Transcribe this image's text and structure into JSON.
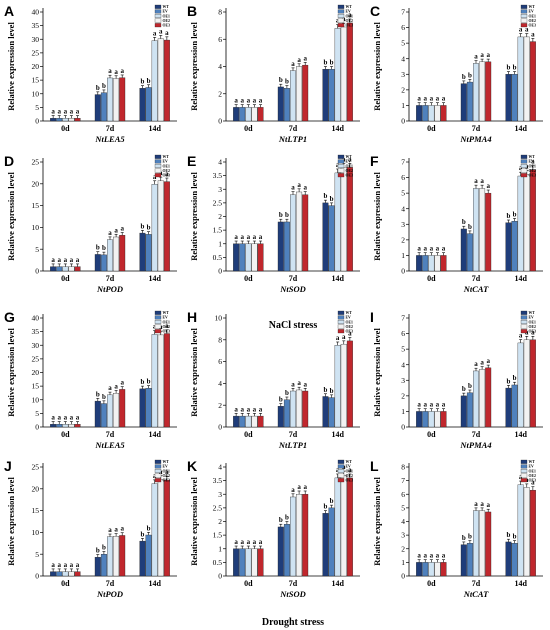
{
  "colors": {
    "WT": "#1f3d7a",
    "EV": "#4f81bd",
    "OE1": "#cfe3f2",
    "OE2": "#f2f2f2",
    "OE3": "#c0272d"
  },
  "stress_labels": [
    "NaCl stress",
    "Drought stress"
  ],
  "chart_data": [
    {
      "panel": "A",
      "type": "bar",
      "ylabel": "Relative expression level",
      "xlabel": "NtLEA5",
      "categories": [
        "0d",
        "7d",
        "14d"
      ],
      "ylim": [
        0,
        40
      ],
      "yticks": [
        0,
        5,
        10,
        15,
        20,
        25,
        30,
        35,
        40
      ],
      "series": [
        {
          "name": "WT",
          "values": [
            1,
            9.7,
            12
          ]
        },
        {
          "name": "EV",
          "values": [
            1,
            10.4,
            12.3
          ]
        },
        {
          "name": "OE1",
          "values": [
            1,
            15.8,
            29.5
          ]
        },
        {
          "name": "OE2",
          "values": [
            1,
            15.6,
            30.2
          ]
        },
        {
          "name": "OE3",
          "values": [
            1,
            15.9,
            29.7
          ]
        }
      ],
      "letters": [
        [
          "a",
          "a",
          "a",
          "a",
          "a"
        ],
        [
          "b",
          "b",
          "a",
          "a",
          "a"
        ],
        [
          "b",
          "b",
          "a",
          "a",
          "a"
        ]
      ]
    },
    {
      "panel": "B",
      "type": "bar",
      "ylabel": "Relative expression level",
      "xlabel": "NtLTP1",
      "categories": [
        "0d",
        "7d",
        "14d"
      ],
      "ylim": [
        0,
        8
      ],
      "yticks": [
        0,
        2,
        4,
        6,
        8
      ],
      "series": [
        {
          "name": "WT",
          "values": [
            1,
            2.5,
            3.8
          ]
        },
        {
          "name": "EV",
          "values": [
            1,
            2.4,
            3.8
          ]
        },
        {
          "name": "OE1",
          "values": [
            1,
            3.7,
            6.8
          ]
        },
        {
          "name": "OE2",
          "values": [
            1,
            4.0,
            6.9
          ]
        },
        {
          "name": "OE3",
          "values": [
            1,
            4.1,
            7.2
          ]
        }
      ],
      "letters": [
        [
          "a",
          "a",
          "a",
          "a",
          "a"
        ],
        [
          "b",
          "b",
          "a",
          "a",
          "a"
        ],
        [
          "b",
          "b",
          "a",
          "a",
          "a"
        ]
      ]
    },
    {
      "panel": "C",
      "type": "bar",
      "ylabel": "Relative expression level",
      "xlabel": "NtPMA4",
      "categories": [
        "0d",
        "7d",
        "14d"
      ],
      "ylim": [
        0,
        7
      ],
      "yticks": [
        0,
        1,
        2,
        3,
        4,
        5,
        6,
        7
      ],
      "series": [
        {
          "name": "WT",
          "values": [
            1,
            2.4,
            3.0
          ]
        },
        {
          "name": "EV",
          "values": [
            1,
            2.5,
            3.0
          ]
        },
        {
          "name": "OE1",
          "values": [
            1,
            3.7,
            5.4
          ]
        },
        {
          "name": "OE2",
          "values": [
            1,
            3.8,
            5.4
          ]
        },
        {
          "name": "OE3",
          "values": [
            1,
            3.8,
            5.1
          ]
        }
      ],
      "letters": [
        [
          "a",
          "a",
          "a",
          "a",
          "a"
        ],
        [
          "b",
          "b",
          "a",
          "a",
          "a"
        ],
        [
          "b",
          "b",
          "a",
          "a",
          "a"
        ]
      ]
    },
    {
      "panel": "D",
      "type": "bar",
      "ylabel": "Relative expression level",
      "xlabel": "NtPOD",
      "categories": [
        "0d",
        "7d",
        "14d"
      ],
      "ylim": [
        0,
        25
      ],
      "yticks": [
        0,
        5,
        10,
        15,
        20,
        25
      ],
      "series": [
        {
          "name": "WT",
          "values": [
            1,
            3.8,
            8.7
          ]
        },
        {
          "name": "EV",
          "values": [
            1,
            3.7,
            8.4
          ]
        },
        {
          "name": "OE1",
          "values": [
            1,
            7.2,
            19.9
          ]
        },
        {
          "name": "OE2",
          "values": [
            1,
            7.8,
            20.7
          ]
        },
        {
          "name": "OE3",
          "values": [
            1,
            8.2,
            20.5
          ]
        }
      ],
      "letters": [
        [
          "a",
          "a",
          "a",
          "a",
          "a"
        ],
        [
          "b",
          "b",
          "a",
          "a",
          "a"
        ],
        [
          "b",
          "b",
          "a",
          "a",
          "a"
        ]
      ]
    },
    {
      "panel": "E",
      "type": "bar",
      "ylabel": "Relative expression level",
      "xlabel": "NtSOD",
      "categories": [
        "0d",
        "7d",
        "14d"
      ],
      "ylim": [
        0,
        4.0
      ],
      "yticks": [
        0,
        0.5,
        1.0,
        1.5,
        2.0,
        2.5,
        3.0,
        3.5,
        4.0
      ],
      "series": [
        {
          "name": "WT",
          "values": [
            1.0,
            1.8,
            2.5
          ]
        },
        {
          "name": "EV",
          "values": [
            1.0,
            1.8,
            2.4
          ]
        },
        {
          "name": "OE1",
          "values": [
            1.0,
            2.8,
            3.6
          ]
        },
        {
          "name": "OE2",
          "values": [
            1.0,
            2.9,
            3.8
          ]
        },
        {
          "name": "OE3",
          "values": [
            1.0,
            2.8,
            3.8
          ]
        }
      ],
      "letters": [
        [
          "a",
          "a",
          "a",
          "a",
          "a"
        ],
        [
          "b",
          "b",
          "a",
          "a",
          "a"
        ],
        [
          "b",
          "b",
          "a",
          "a",
          "a"
        ]
      ]
    },
    {
      "panel": "F",
      "type": "bar",
      "ylabel": "Relative expression level",
      "xlabel": "NtCAT",
      "categories": [
        "0d",
        "7d",
        "14d"
      ],
      "ylim": [
        0,
        7
      ],
      "yticks": [
        0,
        1,
        2,
        3,
        4,
        5,
        6,
        7
      ],
      "series": [
        {
          "name": "WT",
          "values": [
            1,
            2.7,
            3.1
          ]
        },
        {
          "name": "EV",
          "values": [
            1,
            2.4,
            3.2
          ]
        },
        {
          "name": "OE1",
          "values": [
            1,
            5.3,
            6.1
          ]
        },
        {
          "name": "OE2",
          "values": [
            1,
            5.3,
            6.2
          ]
        },
        {
          "name": "OE3",
          "values": [
            1,
            5.0,
            6.5
          ]
        }
      ],
      "letters": [
        [
          "a",
          "a",
          "a",
          "a",
          "a"
        ],
        [
          "b",
          "b",
          "a",
          "a",
          "a"
        ],
        [
          "b",
          "b",
          "a",
          "a",
          "a"
        ]
      ]
    },
    {
      "panel": "G",
      "type": "bar",
      "ylabel": "Relative expression level",
      "xlabel": "NtLEA5",
      "categories": [
        "0d",
        "7d",
        "14d"
      ],
      "ylim": [
        0,
        40
      ],
      "yticks": [
        0,
        5,
        10,
        15,
        20,
        25,
        30,
        35,
        40
      ],
      "series": [
        {
          "name": "WT",
          "values": [
            1,
            9.5,
            14
          ]
        },
        {
          "name": "EV",
          "values": [
            1,
            8.6,
            14.2
          ]
        },
        {
          "name": "OE1",
          "values": [
            1,
            11.8,
            34
          ]
        },
        {
          "name": "OE2",
          "values": [
            1,
            12.4,
            33.8
          ]
        },
        {
          "name": "OE3",
          "values": [
            1,
            13.8,
            34.3
          ]
        }
      ],
      "letters": [
        [
          "a",
          "a",
          "a",
          "a",
          "a"
        ],
        [
          "b",
          "b",
          "a",
          "a",
          "a"
        ],
        [
          "b",
          "b",
          "a",
          "a",
          "a"
        ]
      ]
    },
    {
      "panel": "H",
      "type": "bar",
      "ylabel": "Relative expression level",
      "xlabel": "NtLTP1",
      "categories": [
        "0d",
        "7d",
        "14d"
      ],
      "ylim": [
        0,
        10
      ],
      "yticks": [
        0,
        2,
        4,
        6,
        8,
        10
      ],
      "series": [
        {
          "name": "WT",
          "values": [
            1,
            1.9,
            2.8
          ]
        },
        {
          "name": "EV",
          "values": [
            1,
            2.5,
            2.7
          ]
        },
        {
          "name": "OE1",
          "values": [
            1,
            3.3,
            7.5
          ]
        },
        {
          "name": "OE2",
          "values": [
            1,
            3.4,
            7.6
          ]
        },
        {
          "name": "OE3",
          "values": [
            1,
            3.3,
            7.9
          ]
        }
      ],
      "letters": [
        [
          "a",
          "a",
          "a",
          "a",
          "a"
        ],
        [
          "b",
          "b",
          "a",
          "a",
          "a"
        ],
        [
          "b",
          "b",
          "a",
          "a",
          "a"
        ]
      ]
    },
    {
      "panel": "I",
      "type": "bar",
      "ylabel": "Relative expression level",
      "xlabel": "NtPMA4",
      "categories": [
        "0d",
        "7d",
        "14d"
      ],
      "ylim": [
        0,
        7
      ],
      "yticks": [
        0,
        1,
        2,
        3,
        4,
        5,
        6,
        7
      ],
      "series": [
        {
          "name": "WT",
          "values": [
            1,
            2.0,
            2.5
          ]
        },
        {
          "name": "EV",
          "values": [
            1,
            2.2,
            2.7
          ]
        },
        {
          "name": "OE1",
          "values": [
            1,
            3.6,
            5.4
          ]
        },
        {
          "name": "OE2",
          "values": [
            1,
            3.7,
            5.6
          ]
        },
        {
          "name": "OE3",
          "values": [
            1,
            3.8,
            5.6
          ]
        }
      ],
      "letters": [
        [
          "a",
          "a",
          "a",
          "a",
          "a"
        ],
        [
          "b",
          "b",
          "a",
          "a",
          "a"
        ],
        [
          "b",
          "b",
          "a",
          "a",
          "a"
        ]
      ]
    },
    {
      "panel": "J",
      "type": "bar",
      "ylabel": "Relative expression level",
      "xlabel": "NtPOD",
      "categories": [
        "0d",
        "7d",
        "14d"
      ],
      "ylim": [
        0,
        25
      ],
      "yticks": [
        0,
        5,
        10,
        15,
        20,
        25
      ],
      "series": [
        {
          "name": "WT",
          "values": [
            1,
            4.3,
            8.0
          ]
        },
        {
          "name": "EV",
          "values": [
            1,
            5.0,
            9.4
          ]
        },
        {
          "name": "OE1",
          "values": [
            1,
            9.0,
            21.2
          ]
        },
        {
          "name": "OE2",
          "values": [
            1,
            9.1,
            22.1
          ]
        },
        {
          "name": "OE3",
          "values": [
            1,
            9.3,
            22.0
          ]
        }
      ],
      "letters": [
        [
          "a",
          "a",
          "a",
          "a",
          "a"
        ],
        [
          "b",
          "b",
          "a",
          "a",
          "a"
        ],
        [
          "b",
          "b",
          "a",
          "a",
          "a"
        ]
      ]
    },
    {
      "panel": "K",
      "type": "bar",
      "ylabel": "Relative expression level",
      "xlabel": "NtSOD",
      "categories": [
        "0d",
        "7d",
        "14d"
      ],
      "ylim": [
        0,
        4.0
      ],
      "yticks": [
        0,
        0.5,
        1.0,
        1.5,
        2.0,
        2.5,
        3.0,
        3.5,
        4.0
      ],
      "series": [
        {
          "name": "WT",
          "values": [
            1.0,
            1.8,
            2.3
          ]
        },
        {
          "name": "EV",
          "values": [
            1.0,
            1.9,
            2.5
          ]
        },
        {
          "name": "OE1",
          "values": [
            1.0,
            2.9,
            3.6
          ]
        },
        {
          "name": "OE2",
          "values": [
            1.0,
            3.0,
            3.7
          ]
        },
        {
          "name": "OE3",
          "values": [
            1.0,
            3.0,
            3.6
          ]
        }
      ],
      "letters": [
        [
          "a",
          "a",
          "a",
          "a",
          "a"
        ],
        [
          "b",
          "b",
          "a",
          "a",
          "a"
        ],
        [
          "b",
          "b",
          "a",
          "a",
          "a"
        ]
      ]
    },
    {
      "panel": "L",
      "type": "bar",
      "ylabel": "Relative expression level",
      "xlabel": "NtCAT",
      "categories": [
        "0d",
        "7d",
        "14d"
      ],
      "ylim": [
        0,
        8
      ],
      "yticks": [
        0,
        1,
        2,
        3,
        4,
        5,
        6,
        7,
        8
      ],
      "series": [
        {
          "name": "WT",
          "values": [
            1,
            2.3,
            2.5
          ]
        },
        {
          "name": "EV",
          "values": [
            1,
            2.4,
            2.4
          ]
        },
        {
          "name": "OE1",
          "values": [
            1,
            4.8,
            6.7
          ]
        },
        {
          "name": "OE2",
          "values": [
            1,
            4.8,
            6.5
          ]
        },
        {
          "name": "OE3",
          "values": [
            1,
            4.7,
            6.3
          ]
        }
      ],
      "letters": [
        [
          "a",
          "a",
          "a",
          "a",
          "a"
        ],
        [
          "b",
          "b",
          "a",
          "a",
          "a"
        ],
        [
          "b",
          "b",
          "a",
          "a",
          "a"
        ]
      ]
    }
  ]
}
